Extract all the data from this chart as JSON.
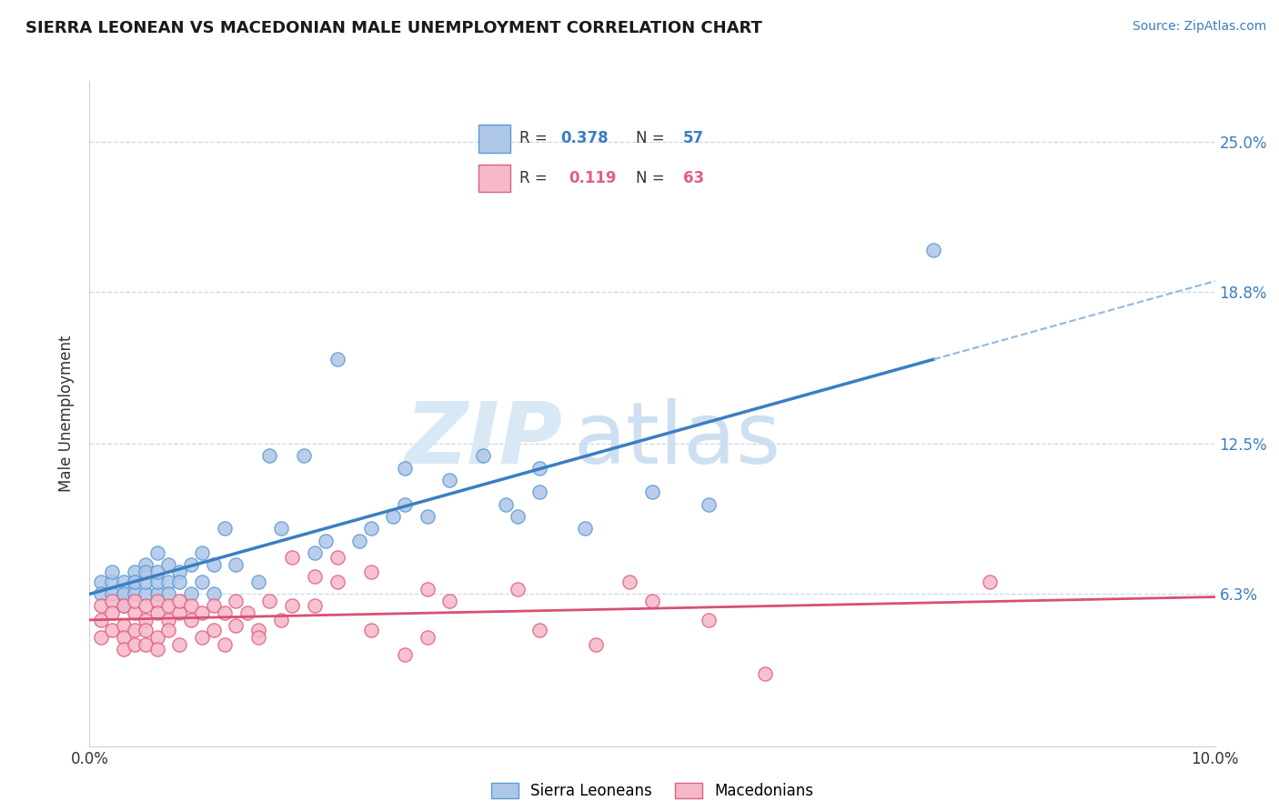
{
  "title": "SIERRA LEONEAN VS MACEDONIAN MALE UNEMPLOYMENT CORRELATION CHART",
  "source": "Source: ZipAtlas.com",
  "ylabel": "Male Unemployment",
  "ytick_labels": [
    "6.3%",
    "12.5%",
    "18.8%",
    "25.0%"
  ],
  "ytick_values": [
    0.063,
    0.125,
    0.188,
    0.25
  ],
  "xmin": 0.0,
  "xmax": 0.1,
  "ymin": 0.0,
  "ymax": 0.275,
  "sierra_color": "#aec6e8",
  "sierra_edge_color": "#5b9bd5",
  "mac_color": "#f5b8c8",
  "mac_edge_color": "#e06080",
  "sierra_line_color": "#3a7fc1",
  "mac_line_color": "#d95070",
  "dashed_color": "#90b8e0",
  "grid_color": "#c8d8ec",
  "watermark_color": "#d8e8f5",
  "sierra_scatter": [
    [
      0.001,
      0.068
    ],
    [
      0.001,
      0.063
    ],
    [
      0.002,
      0.068
    ],
    [
      0.002,
      0.063
    ],
    [
      0.002,
      0.072
    ],
    [
      0.003,
      0.063
    ],
    [
      0.003,
      0.068
    ],
    [
      0.003,
      0.063
    ],
    [
      0.003,
      0.058
    ],
    [
      0.004,
      0.068
    ],
    [
      0.004,
      0.063
    ],
    [
      0.004,
      0.072
    ],
    [
      0.004,
      0.068
    ],
    [
      0.005,
      0.063
    ],
    [
      0.005,
      0.068
    ],
    [
      0.005,
      0.075
    ],
    [
      0.005,
      0.072
    ],
    [
      0.006,
      0.063
    ],
    [
      0.006,
      0.068
    ],
    [
      0.006,
      0.072
    ],
    [
      0.006,
      0.08
    ],
    [
      0.007,
      0.068
    ],
    [
      0.007,
      0.075
    ],
    [
      0.007,
      0.063
    ],
    [
      0.008,
      0.072
    ],
    [
      0.008,
      0.068
    ],
    [
      0.009,
      0.075
    ],
    [
      0.009,
      0.063
    ],
    [
      0.01,
      0.068
    ],
    [
      0.01,
      0.08
    ],
    [
      0.011,
      0.075
    ],
    [
      0.011,
      0.063
    ],
    [
      0.012,
      0.09
    ],
    [
      0.013,
      0.075
    ],
    [
      0.015,
      0.068
    ],
    [
      0.016,
      0.12
    ],
    [
      0.017,
      0.09
    ],
    [
      0.019,
      0.12
    ],
    [
      0.02,
      0.08
    ],
    [
      0.021,
      0.085
    ],
    [
      0.022,
      0.16
    ],
    [
      0.024,
      0.085
    ],
    [
      0.025,
      0.09
    ],
    [
      0.027,
      0.095
    ],
    [
      0.028,
      0.115
    ],
    [
      0.028,
      0.1
    ],
    [
      0.03,
      0.095
    ],
    [
      0.032,
      0.11
    ],
    [
      0.035,
      0.12
    ],
    [
      0.037,
      0.1
    ],
    [
      0.038,
      0.095
    ],
    [
      0.04,
      0.105
    ],
    [
      0.04,
      0.115
    ],
    [
      0.044,
      0.09
    ],
    [
      0.05,
      0.105
    ],
    [
      0.055,
      0.1
    ],
    [
      0.075,
      0.205
    ]
  ],
  "mac_scatter": [
    [
      0.001,
      0.058
    ],
    [
      0.001,
      0.052
    ],
    [
      0.001,
      0.045
    ],
    [
      0.002,
      0.06
    ],
    [
      0.002,
      0.055
    ],
    [
      0.002,
      0.048
    ],
    [
      0.003,
      0.058
    ],
    [
      0.003,
      0.05
    ],
    [
      0.003,
      0.045
    ],
    [
      0.003,
      0.04
    ],
    [
      0.004,
      0.055
    ],
    [
      0.004,
      0.06
    ],
    [
      0.004,
      0.048
    ],
    [
      0.004,
      0.042
    ],
    [
      0.005,
      0.058
    ],
    [
      0.005,
      0.052
    ],
    [
      0.005,
      0.042
    ],
    [
      0.005,
      0.048
    ],
    [
      0.006,
      0.06
    ],
    [
      0.006,
      0.055
    ],
    [
      0.006,
      0.045
    ],
    [
      0.006,
      0.04
    ],
    [
      0.007,
      0.058
    ],
    [
      0.007,
      0.052
    ],
    [
      0.007,
      0.048
    ],
    [
      0.008,
      0.055
    ],
    [
      0.008,
      0.06
    ],
    [
      0.008,
      0.042
    ],
    [
      0.009,
      0.052
    ],
    [
      0.009,
      0.058
    ],
    [
      0.01,
      0.045
    ],
    [
      0.01,
      0.055
    ],
    [
      0.011,
      0.058
    ],
    [
      0.011,
      0.048
    ],
    [
      0.012,
      0.055
    ],
    [
      0.012,
      0.042
    ],
    [
      0.013,
      0.06
    ],
    [
      0.013,
      0.05
    ],
    [
      0.014,
      0.055
    ],
    [
      0.015,
      0.048
    ],
    [
      0.015,
      0.045
    ],
    [
      0.016,
      0.06
    ],
    [
      0.017,
      0.052
    ],
    [
      0.018,
      0.078
    ],
    [
      0.018,
      0.058
    ],
    [
      0.02,
      0.07
    ],
    [
      0.02,
      0.058
    ],
    [
      0.022,
      0.078
    ],
    [
      0.022,
      0.068
    ],
    [
      0.025,
      0.072
    ],
    [
      0.025,
      0.048
    ],
    [
      0.028,
      0.038
    ],
    [
      0.03,
      0.065
    ],
    [
      0.03,
      0.045
    ],
    [
      0.032,
      0.06
    ],
    [
      0.038,
      0.065
    ],
    [
      0.04,
      0.048
    ],
    [
      0.045,
      0.042
    ],
    [
      0.048,
      0.068
    ],
    [
      0.05,
      0.06
    ],
    [
      0.055,
      0.052
    ],
    [
      0.06,
      0.03
    ],
    [
      0.08,
      0.068
    ]
  ]
}
